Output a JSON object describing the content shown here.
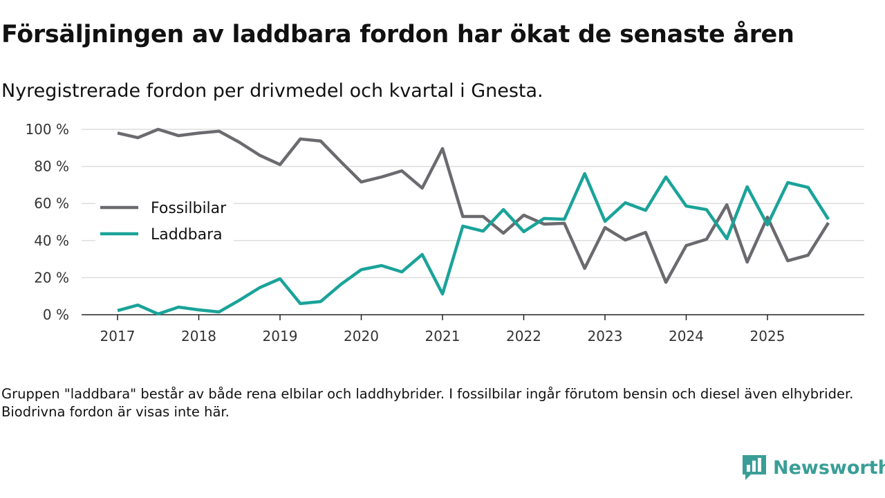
{
  "title": "Försäljningen av laddbara fordon har ökat de senaste åren",
  "subtitle": "Nyregistrerade fordon per drivmedel och kvartal i Gnesta.",
  "note": "Gruppen \"laddbara\" består av både rena elbilar och laddhybrider. I fossilbilar ingår förutom bensin och diesel även elhybrider. Biodrivna fordon är visas inte här.",
  "logo": {
    "text": "Newsworthy",
    "icon": "bar-chart-speech-icon",
    "color": "#3a9e96"
  },
  "chart_data": {
    "type": "line",
    "x_start_year": 2017,
    "x_step": "quarter",
    "xticks": [
      "2017",
      "2018",
      "2019",
      "2020",
      "2021",
      "2022",
      "2023",
      "2024",
      "2025"
    ],
    "yticks": [
      "0 %",
      "20 %",
      "40 %",
      "60 %",
      "80 %",
      "100 %"
    ],
    "ylim": [
      0,
      100
    ],
    "grid": true,
    "legend_position": "left",
    "series": [
      {
        "name": "Fossilbilar",
        "color": "#6b6a6f",
        "values": [
          98,
          95.5,
          100,
          96.6,
          98,
          99,
          93,
          86,
          81,
          94.8,
          93.7,
          82.5,
          71.6,
          74.3,
          77.6,
          68.3,
          89.6,
          53,
          53,
          44,
          53.7,
          48.9,
          49.3,
          25,
          47,
          40.3,
          44.4,
          17.5,
          37.3,
          40.7,
          59.3,
          28.4,
          52.6,
          29.1,
          32.1,
          49.6
        ]
      },
      {
        "name": "Laddbara",
        "color": "#1aa399",
        "values": [
          2.2,
          5.2,
          0.4,
          4.1,
          2.6,
          1.5,
          7.8,
          14.6,
          19.4,
          6,
          7.1,
          16.4,
          24.3,
          26.5,
          23.1,
          32.5,
          11.2,
          47.8,
          45.1,
          56.7,
          44.8,
          51.9,
          51.5,
          76.1,
          50.4,
          60.4,
          56.3,
          74.3,
          58.6,
          56.7,
          41,
          69,
          48.5,
          71.3,
          68.7,
          51.5
        ]
      }
    ]
  }
}
